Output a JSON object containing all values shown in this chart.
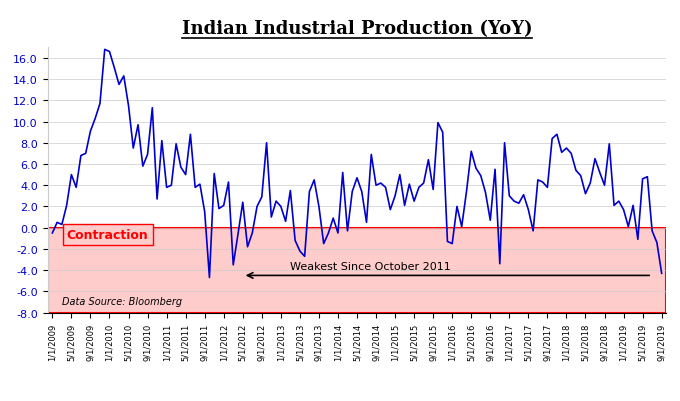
{
  "title": "Indian Industrial Production (YoY)",
  "ylabel_color": "#0000CD",
  "line_color": "#0000CD",
  "background_color": "#ffffff",
  "shading_color": "#FFCCCC",
  "shading_edgecolor": "#FF0000",
  "contraction_label": "Contraction",
  "contraction_color": "#FF0000",
  "datasource_label": "Data Source: Bloomberg",
  "arrow_label": "Weakest Since October 2011",
  "ylim": [
    -8.0,
    17.0
  ],
  "yticks": [
    -8.0,
    -6.0,
    -4.0,
    -2.0,
    0.0,
    2.0,
    4.0,
    6.0,
    8.0,
    10.0,
    12.0,
    14.0,
    16.0
  ],
  "values": [
    -0.5,
    0.5,
    0.3,
    2.1,
    5.0,
    3.8,
    6.8,
    7.0,
    9.1,
    10.3,
    11.7,
    16.8,
    16.6,
    15.1,
    13.5,
    14.3,
    11.5,
    7.5,
    9.7,
    5.8,
    6.9,
    11.3,
    2.7,
    8.2,
    3.8,
    4.0,
    7.9,
    5.7,
    5.0,
    8.8,
    3.8,
    4.1,
    1.5,
    -4.7,
    5.1,
    1.8,
    2.1,
    4.3,
    -3.5,
    -0.6,
    2.4,
    -1.8,
    -0.5,
    2.0,
    2.9,
    8.0,
    1.0,
    2.5,
    2.0,
    0.6,
    3.5,
    -1.2,
    -2.2,
    -2.7,
    3.4,
    4.5,
    2.0,
    -1.5,
    -0.5,
    0.9,
    -0.5,
    5.2,
    -0.3,
    3.4,
    4.7,
    3.4,
    0.5,
    6.9,
    4.0,
    4.2,
    3.8,
    1.7,
    3.0,
    5.0,
    2.1,
    4.1,
    2.5,
    3.8,
    4.2,
    6.4,
    3.6,
    9.9,
    9.0,
    -1.3,
    -1.5,
    2.0,
    0.1,
    3.4,
    7.2,
    5.6,
    4.9,
    3.3,
    0.7,
    5.5,
    -3.4,
    8.0,
    3.0,
    2.5,
    2.3,
    3.1,
    1.7,
    -0.3,
    4.5,
    4.3,
    3.8,
    8.4,
    8.8,
    7.1,
    7.5,
    7.0,
    5.4,
    4.9,
    3.2,
    4.2,
    6.5,
    5.2,
    4.0,
    7.9,
    2.1,
    2.5,
    1.7,
    0.1,
    2.1,
    -1.1,
    4.6,
    4.8,
    -0.3,
    -1.4,
    -4.3
  ],
  "xtick_labels": [
    "1/1/2009",
    "5/1/2009",
    "9/1/2009",
    "1/1/2010",
    "5/1/2010",
    "9/1/2010",
    "1/1/2011",
    "5/1/2011",
    "9/1/2011",
    "1/1/2012",
    "5/1/2012",
    "9/1/2012",
    "1/1/2013",
    "5/1/2013",
    "9/1/2013",
    "1/1/2014",
    "5/1/2014",
    "9/1/2014",
    "1/1/2015",
    "5/1/2015",
    "9/1/2015",
    "1/1/2016",
    "5/1/2016",
    "9/1/2016",
    "1/1/2017",
    "5/1/2017",
    "9/1/2017",
    "1/1/2018",
    "5/1/2018",
    "9/1/2018",
    "1/1/2019",
    "5/1/2019",
    "9/1/2019"
  ],
  "xtick_positions": [
    0,
    4,
    8,
    12,
    16,
    20,
    24,
    28,
    32,
    36,
    40,
    44,
    48,
    52,
    56,
    60,
    64,
    68,
    72,
    76,
    80,
    84,
    88,
    92,
    96,
    100,
    104,
    108,
    112,
    116,
    120,
    124,
    128
  ]
}
